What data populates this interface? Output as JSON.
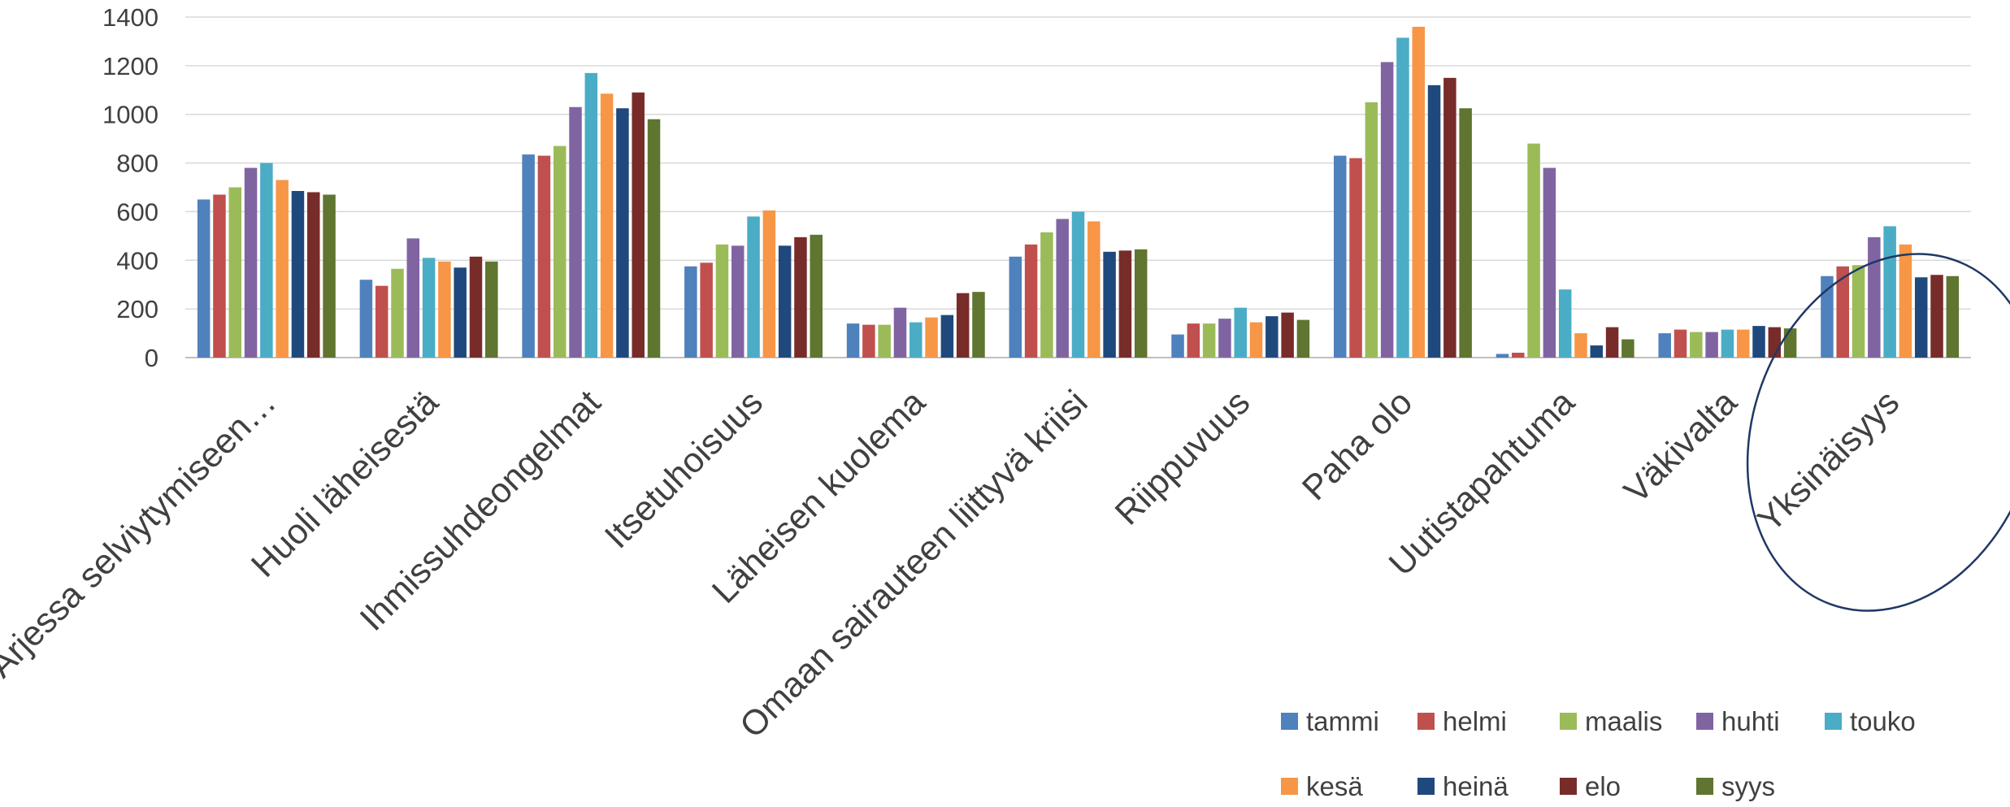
{
  "chart_data": {
    "type": "bar",
    "title": "",
    "xlabel": "",
    "ylabel": "",
    "ylim": [
      0,
      1400
    ],
    "yticks": [
      0,
      200,
      400,
      600,
      800,
      1000,
      1200,
      1400
    ],
    "grid": true,
    "legend_position": "bottom-right",
    "categories": [
      "Arjessa selviytymiseen…",
      "Huoli läheisestä",
      "Ihmissuhdeongelmat",
      "Itsetuhoisuus",
      "Läheisen kuolema",
      "Omaan sairauteen liittyvä kriisi",
      "Riippuvuus",
      "Paha olo",
      "Uutistapahtuma",
      "Väkivalta",
      "Yksinäisyys"
    ],
    "series": [
      {
        "name": "tammi",
        "color": "#4F81BD",
        "values": [
          650,
          320,
          835,
          375,
          140,
          415,
          95,
          830,
          15,
          100,
          335
        ]
      },
      {
        "name": "helmi",
        "color": "#C0504D",
        "values": [
          670,
          295,
          830,
          390,
          135,
          465,
          140,
          820,
          20,
          115,
          375
        ]
      },
      {
        "name": "maalis",
        "color": "#9BBB59",
        "values": [
          700,
          365,
          870,
          465,
          135,
          515,
          140,
          1050,
          880,
          105,
          380
        ]
      },
      {
        "name": "huhti",
        "color": "#8064A2",
        "values": [
          780,
          490,
          1030,
          460,
          205,
          570,
          160,
          1215,
          780,
          105,
          495
        ]
      },
      {
        "name": "touko",
        "color": "#4BACC6",
        "values": [
          800,
          410,
          1170,
          580,
          145,
          600,
          205,
          1315,
          280,
          115,
          540
        ]
      },
      {
        "name": "kesä",
        "color": "#F79646",
        "values": [
          730,
          395,
          1085,
          605,
          165,
          560,
          145,
          1360,
          100,
          115,
          465
        ]
      },
      {
        "name": "heinä",
        "color": "#1F497D",
        "values": [
          685,
          370,
          1025,
          460,
          175,
          435,
          170,
          1120,
          50,
          130,
          330
        ]
      },
      {
        "name": "elo",
        "color": "#772C2A",
        "values": [
          680,
          415,
          1090,
          495,
          265,
          440,
          185,
          1150,
          125,
          125,
          340
        ]
      },
      {
        "name": "syys",
        "color": "#5F7530",
        "values": [
          670,
          395,
          980,
          505,
          270,
          445,
          155,
          1025,
          75,
          120,
          335
        ]
      }
    ],
    "annotation": {
      "type": "ellipse",
      "target_category": "Yksinäisyys",
      "color": "#1F3864"
    }
  }
}
